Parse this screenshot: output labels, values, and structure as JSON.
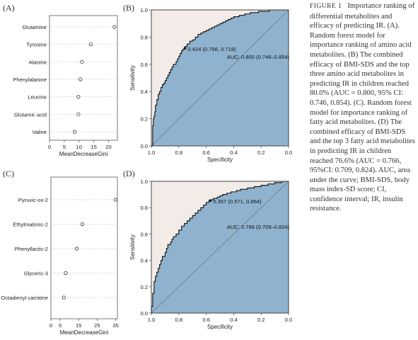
{
  "panels": {
    "a": "(A)",
    "b": "(B)",
    "c": "(C)",
    "d": "(D)"
  },
  "caption": {
    "figure_label": "FIGURE 1",
    "text": "Importance ranking of differential metabolites and efficacy of predicting IR. (A). Random forest model for importance ranking of amino acid metabolites. (B) The combined efficacy of BMI-SDS and the top three amino acid metabolites in predicting IR in children reached 80.0% (AUC = 0.800, 95% CI: 0.746, 0.854). (C). Random forest model for importance ranking of fatty acid metabolites. (D) The combined efficacy of BMI-SDS and the top 3 fatty acid metabolites in predicting IR in children reached 76.6% (AUC = 0.766, 95%CI: 0.709, 0.824). AUC, area under the curve; BMI-SDS, body mass index-SD score; CI, confidence interval; IR, insulin resistance."
  },
  "chart_data": [
    {
      "id": "A",
      "type": "scatter",
      "categories": [
        "Glutamine",
        "Tyrosine",
        "Alanine",
        "Phenylalanine",
        "Leucine",
        "Glutamic acid",
        "Valine"
      ],
      "values": [
        22.0,
        14.0,
        11.0,
        10.5,
        9.8,
        9.8,
        8.5
      ],
      "xlabel": "MeanDecreaseGini",
      "xlim": [
        0,
        23
      ],
      "xticks": [
        0,
        5,
        10,
        15,
        20
      ],
      "grid": "dotted horizontal"
    },
    {
      "id": "B",
      "type": "line",
      "xlabel": "Specificity",
      "ylabel": "Sensitivity",
      "xlim": [
        1.0,
        0.0
      ],
      "ylim": [
        0.0,
        1.0
      ],
      "xticks": [
        1.0,
        0.8,
        0.6,
        0.4,
        0.2,
        0.0
      ],
      "yticks": [
        0.0,
        0.2,
        0.4,
        0.6,
        0.8,
        1.0
      ],
      "threshold_label": "0.424 (0.756, 0.718)",
      "threshold_point": {
        "specificity": 0.756,
        "sensitivity": 0.718
      },
      "auc_label": "AUC: 0.800 (0.746–0.854)",
      "roc": {
        "specificity": [
          1.0,
          0.99,
          0.99,
          0.985,
          0.98,
          0.975,
          0.97,
          0.97,
          0.96,
          0.96,
          0.95,
          0.95,
          0.94,
          0.93,
          0.93,
          0.92,
          0.91,
          0.9,
          0.89,
          0.88,
          0.87,
          0.86,
          0.85,
          0.84,
          0.82,
          0.81,
          0.8,
          0.79,
          0.78,
          0.77,
          0.76,
          0.756,
          0.74,
          0.72,
          0.7,
          0.68,
          0.66,
          0.64,
          0.62,
          0.6,
          0.58,
          0.56,
          0.54,
          0.52,
          0.5,
          0.48,
          0.46,
          0.44,
          0.42,
          0.4,
          0.38,
          0.36,
          0.34,
          0.32,
          0.3,
          0.28,
          0.26,
          0.24,
          0.22,
          0.2,
          0.18,
          0.16,
          0.14,
          0.12,
          0.1,
          0.08,
          0.06,
          0.04,
          0.02,
          0.0
        ],
        "sensitivity": [
          0.0,
          0.0,
          0.1,
          0.15,
          0.2,
          0.22,
          0.25,
          0.28,
          0.3,
          0.32,
          0.34,
          0.36,
          0.38,
          0.4,
          0.42,
          0.43,
          0.45,
          0.46,
          0.48,
          0.5,
          0.52,
          0.54,
          0.56,
          0.58,
          0.6,
          0.62,
          0.64,
          0.66,
          0.68,
          0.7,
          0.71,
          0.718,
          0.73,
          0.75,
          0.77,
          0.78,
          0.8,
          0.82,
          0.83,
          0.84,
          0.85,
          0.86,
          0.87,
          0.88,
          0.89,
          0.9,
          0.91,
          0.92,
          0.93,
          0.94,
          0.95,
          0.95,
          0.96,
          0.96,
          0.97,
          0.97,
          0.98,
          0.98,
          0.98,
          0.99,
          0.99,
          0.99,
          0.99,
          1.0,
          1.0,
          1.0,
          1.0,
          1.0,
          1.0,
          1.0
        ]
      }
    },
    {
      "id": "C",
      "type": "scatter",
      "categories": [
        "Pyruvic-ox-2",
        "Ethylmalonic-2",
        "Phenyllactic-2",
        "Glyceric-3",
        "Octadienyl carnitine"
      ],
      "values": [
        35.0,
        17.0,
        14.0,
        8.0,
        7.0
      ],
      "xlabel": "MeanDecreaseGini",
      "xlim": [
        0,
        36
      ],
      "xticks": [
        0,
        5,
        15,
        25,
        35
      ],
      "grid": "dotted horizontal"
    },
    {
      "id": "D",
      "type": "line",
      "xlabel": "Specificity",
      "ylabel": "Sensitivity",
      "xlim": [
        1.0,
        0.0
      ],
      "ylim": [
        0.0,
        1.0
      ],
      "xticks": [
        1.0,
        0.8,
        0.6,
        0.4,
        0.2,
        0.0
      ],
      "yticks": [
        0.0,
        0.2,
        0.4,
        0.6,
        0.8,
        1.0
      ],
      "threshold_label": "0.357 (0.571, 0.854)",
      "threshold_point": {
        "specificity": 0.571,
        "sensitivity": 0.854
      },
      "auc_label": "AUC: 0.766 (0.709–0.824)",
      "roc": {
        "specificity": [
          1.0,
          0.99,
          0.99,
          0.98,
          0.98,
          0.97,
          0.96,
          0.95,
          0.94,
          0.93,
          0.92,
          0.9,
          0.89,
          0.88,
          0.86,
          0.85,
          0.84,
          0.82,
          0.8,
          0.78,
          0.76,
          0.74,
          0.72,
          0.7,
          0.68,
          0.66,
          0.64,
          0.62,
          0.6,
          0.58,
          0.571,
          0.55,
          0.52,
          0.5,
          0.48,
          0.45,
          0.42,
          0.4,
          0.38,
          0.35,
          0.32,
          0.3,
          0.28,
          0.25,
          0.22,
          0.2,
          0.18,
          0.15,
          0.12,
          0.1,
          0.08,
          0.05,
          0.02,
          0.0
        ],
        "sensitivity": [
          0.0,
          0.05,
          0.1,
          0.15,
          0.2,
          0.24,
          0.28,
          0.31,
          0.34,
          0.37,
          0.4,
          0.43,
          0.46,
          0.49,
          0.52,
          0.54,
          0.56,
          0.58,
          0.6,
          0.63,
          0.66,
          0.68,
          0.7,
          0.72,
          0.74,
          0.76,
          0.78,
          0.8,
          0.82,
          0.84,
          0.854,
          0.86,
          0.87,
          0.88,
          0.89,
          0.9,
          0.91,
          0.92,
          0.92,
          0.93,
          0.94,
          0.94,
          0.95,
          0.95,
          0.96,
          0.96,
          0.97,
          0.97,
          0.98,
          0.98,
          0.99,
          0.99,
          1.0,
          1.0
        ]
      }
    }
  ]
}
